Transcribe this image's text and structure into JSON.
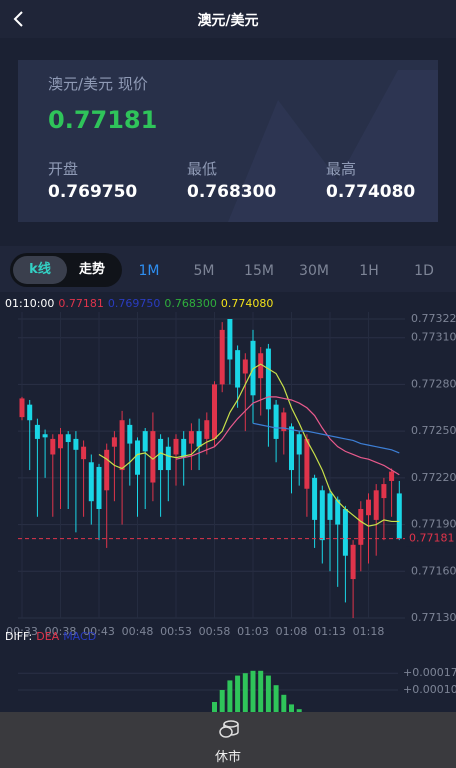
{
  "header": {
    "title": "澳元/美元"
  },
  "quote": {
    "label": "澳元/美元 现价",
    "price": "0.77181",
    "stats": [
      {
        "label": "开盘",
        "value": "0.769750"
      },
      {
        "label": "最低",
        "value": "0.768300"
      },
      {
        "label": "最高",
        "value": "0.774080"
      }
    ]
  },
  "tabs": {
    "modes": [
      "k线",
      "走势"
    ],
    "intervals": [
      "1M",
      "5M",
      "15M",
      "30M",
      "1H",
      "1D"
    ]
  },
  "chart_data": {
    "type": "candlestick",
    "info": [
      {
        "text": "01:10:00",
        "color": "#ffffff"
      },
      {
        "text": "0.77181",
        "color": "#e0344b"
      },
      {
        "text": "0.769750",
        "color": "#2a3cc0"
      },
      {
        "text": "0.768300",
        "color": "#2fae3c"
      },
      {
        "text": "0.774080",
        "color": "#f2e21a"
      }
    ],
    "categories": [
      "00:33",
      null,
      null,
      null,
      null,
      "00:38",
      null,
      null,
      null,
      null,
      "00:43",
      null,
      null,
      null,
      null,
      "00:48",
      null,
      null,
      null,
      null,
      "00:53",
      null,
      null,
      null,
      null,
      "00:58",
      null,
      null,
      null,
      null,
      "01:03",
      null,
      null,
      null,
      null,
      "01:08",
      null,
      null,
      null,
      null,
      "01:13",
      null,
      null,
      null,
      null,
      "01:18",
      null,
      null,
      null,
      null
    ],
    "open": [
      0.77259,
      0.77267,
      0.77254,
      0.77248,
      0.77235,
      0.77239,
      0.77248,
      0.77245,
      0.77232,
      0.7723,
      0.77227,
      0.77212,
      0.7724,
      0.77225,
      0.77254,
      0.77244,
      0.7725,
      0.77217,
      0.77245,
      0.7724,
      0.77235,
      0.77245,
      0.77242,
      0.7725,
      0.77245,
      0.77245,
      0.7728,
      0.77322,
      0.77302,
      0.77287,
      0.77308,
      0.77284,
      0.77303,
      0.77267,
      0.7725,
      0.77253,
      0.77248,
      0.77213,
      0.7722,
      0.77212,
      0.7721,
      0.77206,
      0.772,
      0.77155,
      0.77177,
      0.77196,
      0.77193,
      0.77207,
      0.77218,
      0.7721
    ],
    "high": [
      0.77272,
      0.7727,
      0.77258,
      0.77251,
      0.77248,
      0.77252,
      0.7725,
      0.7725,
      0.77244,
      0.77235,
      0.77229,
      0.77242,
      0.7725,
      0.77263,
      0.77258,
      0.77246,
      0.77252,
      0.77262,
      0.77248,
      0.77246,
      0.77248,
      0.7725,
      0.77255,
      0.77258,
      0.77262,
      0.77282,
      0.7732,
      0.77322,
      0.77305,
      0.773,
      0.77315,
      0.77304,
      0.77306,
      0.7727,
      0.77265,
      0.77255,
      0.7725,
      0.77248,
      0.77222,
      0.77215,
      0.77213,
      0.77208,
      0.77202,
      0.7718,
      0.77205,
      0.7721,
      0.77216,
      0.7722,
      0.77226,
      0.77218
    ],
    "low": [
      0.77257,
      0.77225,
      0.77195,
      0.7722,
      0.77195,
      0.772,
      0.772,
      0.77185,
      0.77195,
      0.7719,
      0.7718,
      0.77175,
      0.77205,
      0.7719,
      0.77215,
      0.77195,
      0.772,
      0.77205,
      0.77195,
      0.77205,
      0.77215,
      0.77215,
      0.77225,
      0.77225,
      0.77235,
      0.7724,
      0.77275,
      0.7728,
      0.77265,
      0.7725,
      0.77255,
      0.7726,
      0.7724,
      0.7723,
      0.77235,
      0.7721,
      0.77215,
      0.77195,
      0.77175,
      0.77165,
      0.7716,
      0.7715,
      0.7714,
      0.7713,
      0.7716,
      0.77165,
      0.7717,
      0.7718,
      0.77195,
      0.7718
    ],
    "close": [
      0.77271,
      0.77257,
      0.77245,
      0.77246,
      0.77245,
      0.77248,
      0.77243,
      0.77238,
      0.7724,
      0.77205,
      0.772,
      0.77238,
      0.77246,
      0.77257,
      0.77242,
      0.77222,
      0.77237,
      0.7725,
      0.77225,
      0.77225,
      0.77245,
      0.77233,
      0.7725,
      0.7724,
      0.77257,
      0.7728,
      0.77315,
      0.77296,
      0.77278,
      0.77296,
      0.77273,
      0.773,
      0.77264,
      0.77245,
      0.77262,
      0.77225,
      0.77235,
      0.77245,
      0.77193,
      0.7718,
      0.77193,
      0.7719,
      0.7717,
      0.77177,
      0.772,
      0.77206,
      0.77212,
      0.77216,
      0.77224,
      0.77181
    ],
    "up_color": "#e0344b",
    "down_color": "#1ad6e6",
    "lines": [
      {
        "color": "#c8e04a",
        "values": [
          null,
          null,
          null,
          null,
          null,
          null,
          null,
          null,
          null,
          null,
          0.77235,
          0.77232,
          0.77228,
          0.77226,
          0.7723,
          0.77235,
          0.77236,
          0.77232,
          0.77236,
          0.77234,
          0.77233,
          0.77234,
          0.77235,
          0.7724,
          0.77243,
          0.77245,
          0.7725,
          0.77262,
          0.7727,
          0.7728,
          0.7729,
          0.77293,
          0.7729,
          0.77287,
          0.77278,
          0.77265,
          0.77255,
          0.77244,
          0.77235,
          0.77225,
          0.77212,
          0.77205,
          0.772,
          0.77196,
          0.77192,
          0.77189,
          0.7719,
          0.77193,
          0.77192,
          0.77192
        ]
      },
      {
        "color": "#e85a8c",
        "values": [
          null,
          null,
          null,
          null,
          null,
          null,
          null,
          null,
          null,
          null,
          null,
          null,
          null,
          null,
          null,
          null,
          null,
          null,
          null,
          null,
          0.77232,
          0.77233,
          0.77234,
          0.77236,
          0.77238,
          0.7724,
          0.77245,
          0.77252,
          0.77258,
          0.77263,
          0.77268,
          0.7727,
          0.77272,
          0.77272,
          0.77271,
          0.7727,
          0.77268,
          0.77265,
          0.7726,
          0.77252,
          0.77245,
          0.7724,
          0.77237,
          0.77235,
          0.77233,
          0.77232,
          0.7723,
          0.77228,
          0.77225,
          0.77222
        ]
      },
      {
        "color": "#3d7fd6",
        "values": [
          null,
          null,
          null,
          null,
          null,
          null,
          null,
          null,
          null,
          null,
          null,
          null,
          null,
          null,
          null,
          null,
          null,
          null,
          null,
          null,
          null,
          null,
          null,
          null,
          null,
          null,
          null,
          null,
          null,
          null,
          0.77255,
          0.77254,
          0.77253,
          0.77252,
          0.77252,
          0.77251,
          0.7725,
          0.7725,
          0.77249,
          0.77248,
          0.77247,
          0.77246,
          0.77245,
          0.77244,
          0.77242,
          0.77241,
          0.7724,
          0.77239,
          0.77238,
          0.77236
        ]
      }
    ],
    "current_price": 0.77181,
    "current_color": "#e0344b",
    "ylim": [
      0.7713,
      0.77322
    ],
    "yticks": [
      0.77322,
      {
        "value": 0.7731,
        "label": "0.77310"
      },
      {
        "value": 0.7728,
        "label": "0.77280"
      },
      {
        "value": 0.7725,
        "label": "0.77250"
      },
      {
        "value": 0.7722,
        "label": "0.77220"
      },
      {
        "value": 0.7719,
        "label": "0.77190"
      },
      {
        "value": 0.7716,
        "label": "0.77160"
      },
      {
        "value": 0.7713,
        "label": "0.77130"
      }
    ],
    "grid": true,
    "macd": {
      "labels": [
        {
          "text": "DIFF:",
          "color": "#ffffff"
        },
        {
          "text": "DEA",
          "color": "#e0344b"
        },
        {
          "text": "MACD",
          "color": "#2a3cc0"
        }
      ],
      "color": "#2fc45a",
      "values": [
        null,
        null,
        null,
        null,
        null,
        null,
        null,
        null,
        null,
        null,
        null,
        null,
        null,
        null,
        null,
        null,
        null,
        null,
        null,
        null,
        null,
        null,
        null,
        null,
        null,
        5e-05,
        0.0001,
        0.00014,
        0.00016,
        0.00017,
        0.00018,
        0.00018,
        0.00016,
        0.00012,
        8e-05,
        4e-05,
        2e-05,
        null,
        null,
        null,
        null,
        null,
        null,
        null,
        null,
        null,
        null,
        null,
        null,
        null
      ],
      "ylim": [
        0,
        0.0002
      ],
      "yticks": [
        {
          "value": 0.00017,
          "label": "+0.00017"
        },
        {
          "value": 0.0001,
          "label": "+0.00010"
        }
      ]
    }
  },
  "footer": {
    "status": "休市"
  }
}
